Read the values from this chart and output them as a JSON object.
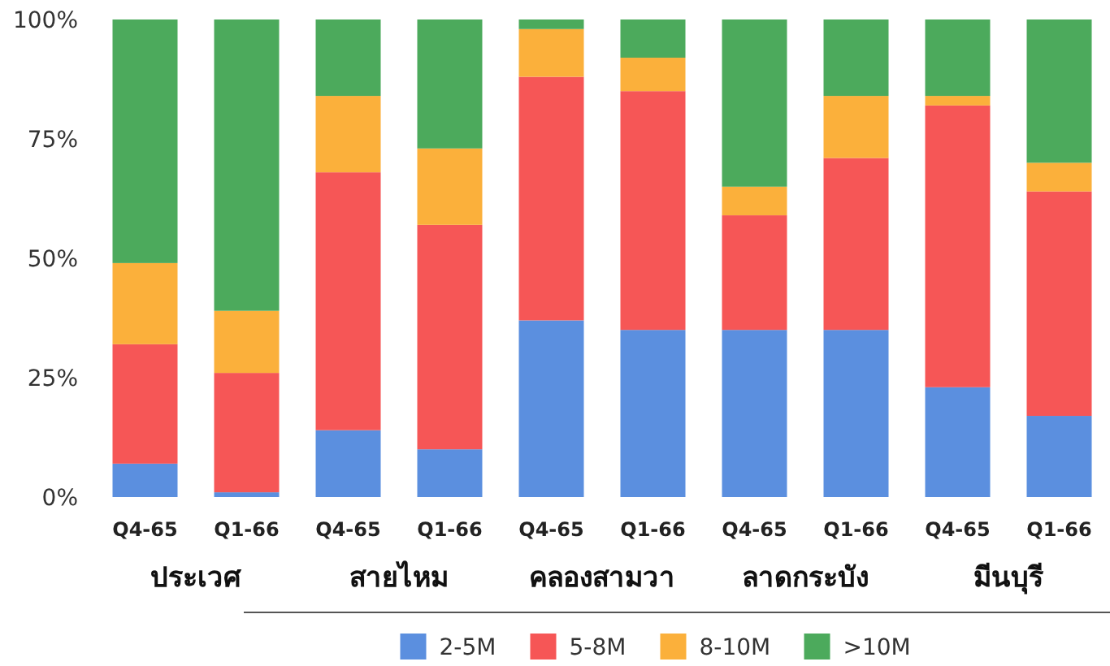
{
  "chart_data": {
    "type": "bar",
    "stacked": true,
    "categories": [
      "Q4-65",
      "Q1-66",
      "Q4-65",
      "Q1-66",
      "Q4-65",
      "Q1-66",
      "Q4-65",
      "Q1-66",
      "Q4-65",
      "Q1-66"
    ],
    "series": [
      {
        "name": "2-5M",
        "color": "#5b8fdf",
        "values": [
          7,
          1,
          14,
          10,
          37,
          35,
          35,
          35,
          23,
          17
        ]
      },
      {
        "name": "5-8M",
        "color": "#f65656",
        "values": [
          25,
          25,
          54,
          47,
          51,
          50,
          24,
          36,
          59,
          47
        ]
      },
      {
        "name": "8-10M",
        "color": "#fbb03b",
        "values": [
          17,
          13,
          16,
          16,
          10,
          7,
          6,
          13,
          2,
          6
        ]
      },
      {
        "name": ">10M",
        "color": "#4caa5c",
        "values": [
          51,
          61,
          16,
          27,
          2,
          8,
          35,
          16,
          16,
          30
        ]
      }
    ],
    "ylim": [
      0,
      100
    ],
    "yticks": [
      {
        "value": 0,
        "label": "0%"
      },
      {
        "value": 25,
        "label": "25%"
      },
      {
        "value": 50,
        "label": "50%"
      },
      {
        "value": 75,
        "label": "75%"
      },
      {
        "value": 100,
        "label": "100%"
      }
    ],
    "annotations": [
      "ประเวศ",
      "สายไหม",
      "คลองสามวา",
      "ลาดกระบัง",
      "มีนบุรี"
    ],
    "legend": "bottom"
  }
}
